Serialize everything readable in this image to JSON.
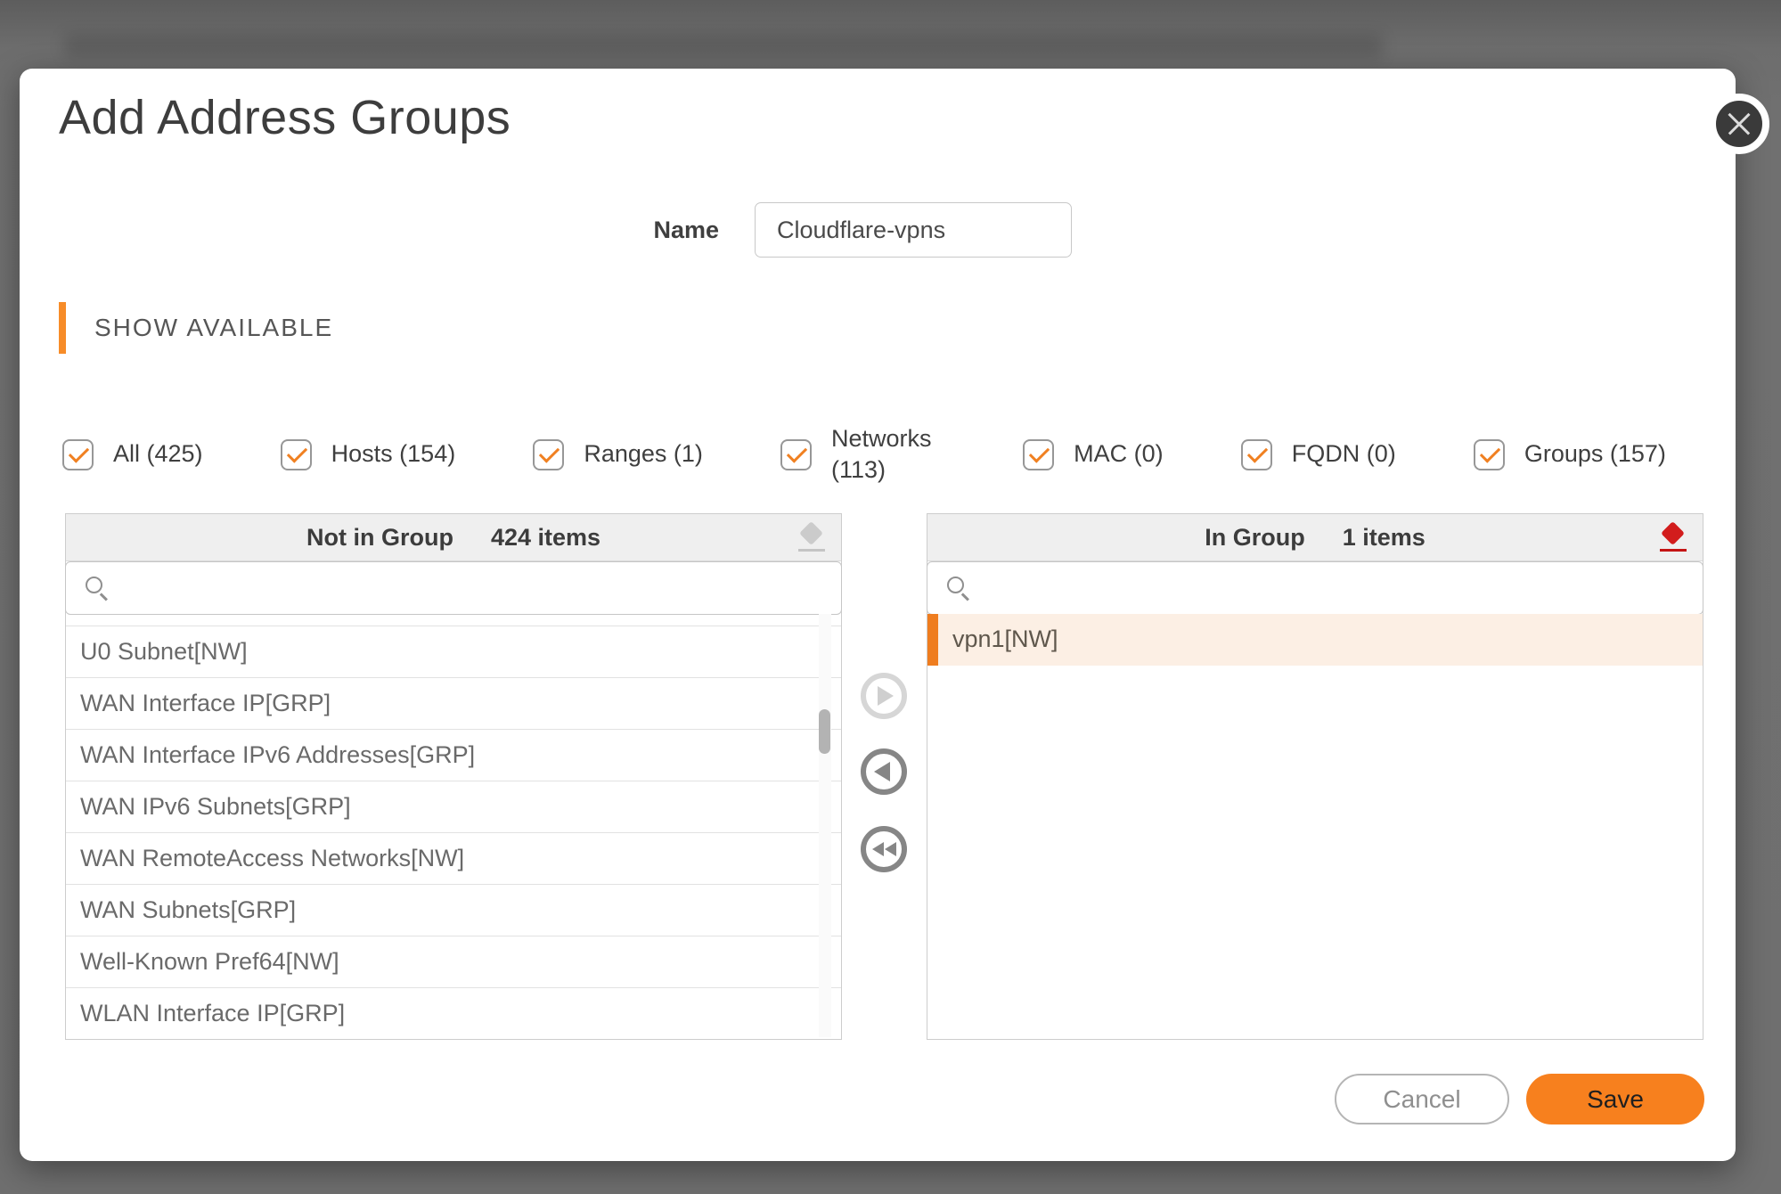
{
  "modal": {
    "title": "Add Address Groups",
    "name_field": {
      "label": "Name",
      "value": "Cloudflare-vpns"
    },
    "section_header": "SHOW AVAILABLE",
    "filters": [
      {
        "id": "all",
        "label": "All (425)",
        "checked": true
      },
      {
        "id": "hosts",
        "label": "Hosts (154)",
        "checked": true
      },
      {
        "id": "ranges",
        "label": "Ranges (1)",
        "checked": true
      },
      {
        "id": "networks",
        "label": "Networks (113)",
        "checked": true
      },
      {
        "id": "mac",
        "label": "MAC (0)",
        "checked": true
      },
      {
        "id": "fqdn",
        "label": "FQDN (0)",
        "checked": true
      },
      {
        "id": "groups",
        "label": "Groups (157)",
        "checked": true
      }
    ],
    "not_in_group": {
      "title": "Not in Group",
      "count": "424 items",
      "search_value": "",
      "items": [
        "U0 Subnet[NW]",
        "WAN Interface IP[GRP]",
        "WAN Interface IPv6 Addresses[GRP]",
        "WAN IPv6 Subnets[GRP]",
        "WAN RemoteAccess Networks[NW]",
        "WAN Subnets[GRP]",
        "Well-Known Pref64[NW]",
        "WLAN Interface IP[GRP]"
      ]
    },
    "in_group": {
      "title": "In Group",
      "count": "1 items",
      "search_value": "",
      "items": [
        {
          "label": "vpn1[NW]",
          "selected": true
        }
      ]
    },
    "transfer_buttons": [
      {
        "id": "move-right",
        "icon": "arrow-right-circle",
        "enabled": false
      },
      {
        "id": "move-left",
        "icon": "arrow-left-circle",
        "enabled": true
      },
      {
        "id": "move-all-left",
        "icon": "double-arrow-left-circle",
        "enabled": true
      }
    ],
    "footer": {
      "cancel": "Cancel",
      "save": "Save"
    },
    "colors": {
      "accent_orange": "#F7801E",
      "check_orange": "#F08021",
      "selected_row_bg": "#FCEFE4",
      "selected_row_bar": "#EF7D1F",
      "eraser_red": "#D21C1C",
      "eraser_grey": "#CBCBCB"
    }
  }
}
